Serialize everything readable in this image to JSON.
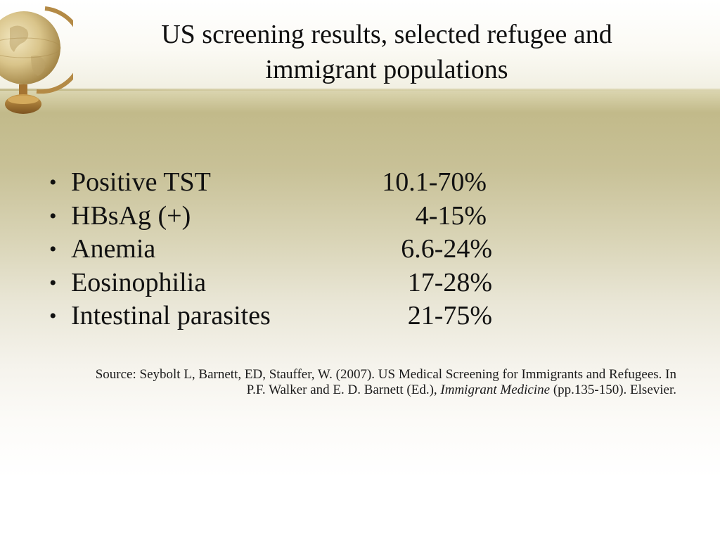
{
  "slide": {
    "title_line1": "US screening results, selected refugee and",
    "title_line2": "immigrant populations",
    "items": [
      {
        "label": "Positive TST",
        "value": "10.1-70%"
      },
      {
        "label": "HBsAg (+)",
        "value": "4-15%"
      },
      {
        "label": "Anemia",
        "value": "6.6-24%"
      },
      {
        "label": "Eosinophilia",
        "value": "17-28%"
      },
      {
        "label": "Intestinal parasites",
        "value": "21-75%"
      }
    ],
    "bullet_char": "•",
    "source": {
      "text1": "Source:  Seybolt L, Barnett, ED, Stauffer, W. (2007). US Medical Screening for Immigrants and Refugees.  In P.F. Walker and E. D. Barnett (Ed.), ",
      "book_title": "Immigrant Medicine",
      "text2": " (pp.135-150).  Elsevier."
    }
  },
  "colors": {
    "band_gold": "#c2ba8a",
    "text": "#111111"
  },
  "icons": {
    "globe": "globe-icon"
  }
}
